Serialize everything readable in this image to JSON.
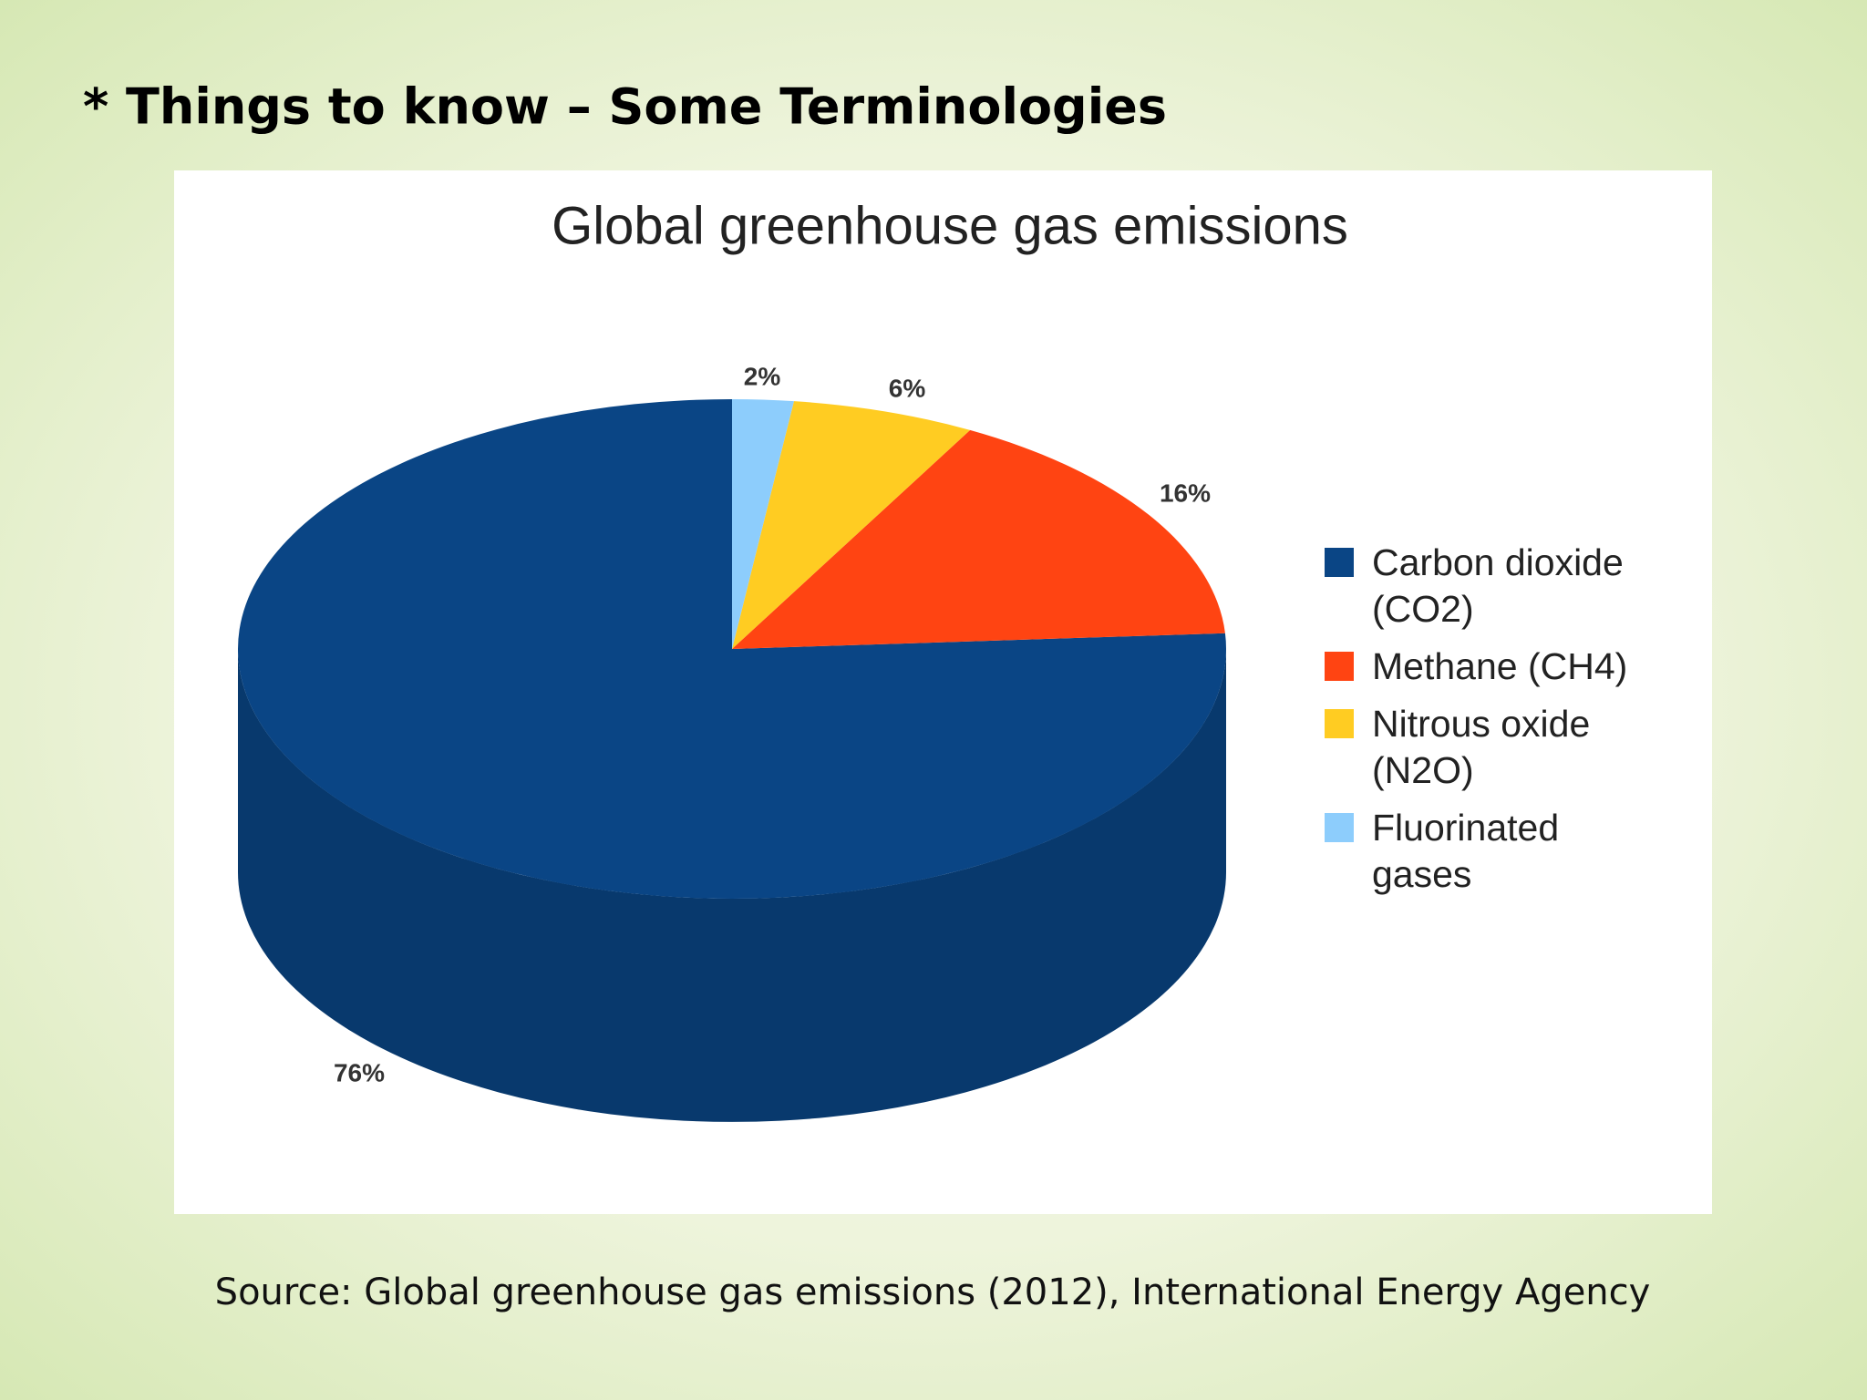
{
  "slide_title": "* Things to know – Some Terminologies",
  "chart_data": {
    "type": "pie",
    "title": "Global greenhouse gas emissions",
    "series": [
      {
        "name": "Carbon dioxide (CO2)",
        "color": "#0a4585",
        "values": [
          76
        ],
        "value_labels": [
          "76%"
        ]
      },
      {
        "name": "Methane (CH4)",
        "color": "#ff4412",
        "values": [
          16
        ],
        "value_labels": [
          "16%"
        ]
      },
      {
        "name": "Nitrous oxide (N2O)",
        "color": "#ffcc22",
        "values": [
          6
        ],
        "value_labels": [
          "6%"
        ]
      },
      {
        "name": "Fluorinated gases",
        "color": "#8dcdfc",
        "values": [
          2
        ],
        "value_labels": [
          "2%"
        ]
      }
    ],
    "legend": "right"
  },
  "source": "Source: Global greenhouse gas emissions (2012), International Energy Agency"
}
